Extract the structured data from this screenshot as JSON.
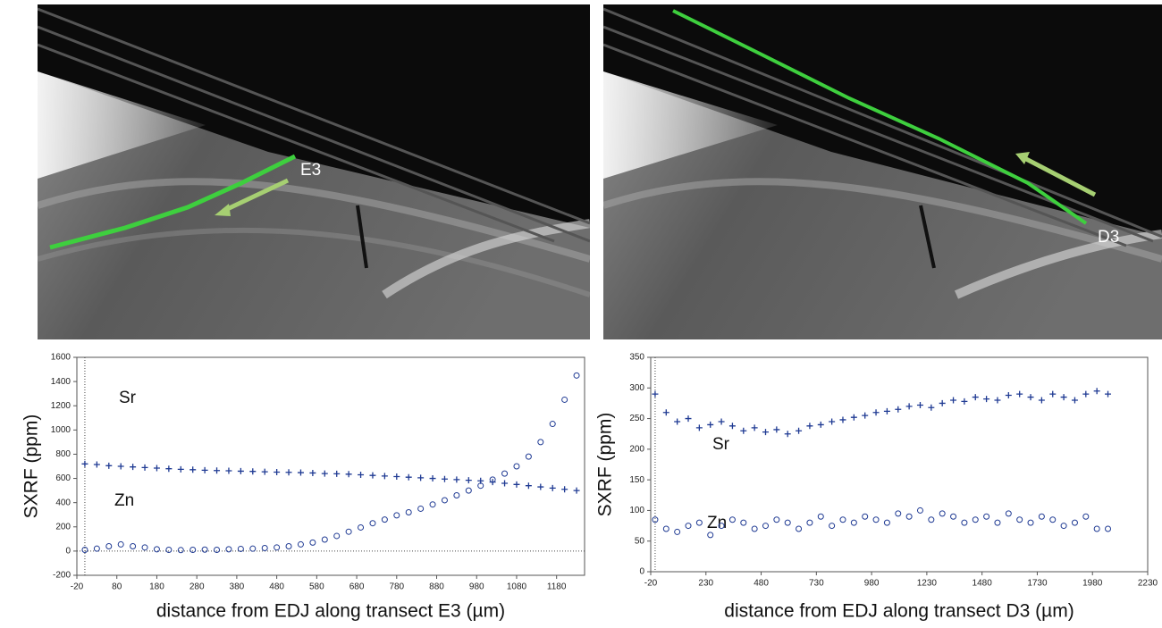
{
  "images": [
    {
      "label": "E3"
    },
    {
      "label": "D3"
    }
  ],
  "chart_data": [
    {
      "type": "scatter",
      "ylabel": "SXRF (ppm)",
      "xlabel": "distance from EDJ along transect E3 (µm)",
      "xlim": [
        -20,
        1250
      ],
      "xticks": [
        -20,
        80,
        180,
        280,
        380,
        480,
        580,
        680,
        780,
        880,
        980,
        1080,
        1180
      ],
      "ylim": [
        -200,
        1600
      ],
      "yticks": [
        -200,
        0,
        200,
        400,
        600,
        800,
        1000,
        1200,
        1400,
        1600
      ],
      "x": [
        0,
        30,
        60,
        90,
        120,
        150,
        180,
        210,
        240,
        270,
        300,
        330,
        360,
        390,
        420,
        450,
        480,
        510,
        540,
        570,
        600,
        630,
        660,
        690,
        720,
        750,
        780,
        810,
        840,
        870,
        900,
        930,
        960,
        990,
        1020,
        1050,
        1080,
        1110,
        1140,
        1170,
        1200,
        1230
      ],
      "series": [
        {
          "name": "Sr",
          "marker": "+",
          "color": "#1f3a93",
          "values": [
            720,
            715,
            705,
            700,
            695,
            690,
            685,
            680,
            675,
            672,
            668,
            665,
            663,
            660,
            658,
            655,
            652,
            650,
            648,
            645,
            640,
            638,
            635,
            630,
            625,
            620,
            615,
            610,
            605,
            600,
            595,
            590,
            585,
            580,
            570,
            560,
            550,
            540,
            530,
            520,
            510,
            500
          ]
        },
        {
          "name": "Zn",
          "marker": "o",
          "color": "#1f3a93",
          "values": [
            10,
            20,
            40,
            55,
            40,
            30,
            15,
            10,
            8,
            10,
            12,
            10,
            15,
            18,
            20,
            25,
            30,
            40,
            55,
            70,
            95,
            125,
            160,
            195,
            230,
            260,
            295,
            320,
            350,
            385,
            420,
            460,
            500,
            540,
            590,
            640,
            700,
            780,
            900,
            1050,
            1250,
            1450
          ]
        }
      ]
    },
    {
      "type": "scatter",
      "ylabel": "SXRF (ppm)",
      "xlabel": "distance from EDJ along transect D3 (µm)",
      "xlim": [
        -20,
        2230
      ],
      "xticks": [
        -20,
        230,
        480,
        730,
        980,
        1230,
        1480,
        1730,
        1980,
        2230
      ],
      "ylim": [
        0,
        350
      ],
      "yticks": [
        0,
        50,
        100,
        150,
        200,
        250,
        300,
        350
      ],
      "x": [
        0,
        50,
        100,
        150,
        200,
        250,
        300,
        350,
        400,
        450,
        500,
        550,
        600,
        650,
        700,
        750,
        800,
        850,
        900,
        950,
        1000,
        1050,
        1100,
        1150,
        1200,
        1250,
        1300,
        1350,
        1400,
        1450,
        1500,
        1550,
        1600,
        1650,
        1700,
        1750,
        1800,
        1850,
        1900,
        1950,
        2000,
        2050
      ],
      "series": [
        {
          "name": "Sr",
          "marker": "+",
          "color": "#1f3a93",
          "values": [
            290,
            260,
            245,
            250,
            235,
            240,
            245,
            238,
            230,
            235,
            228,
            232,
            225,
            230,
            238,
            240,
            245,
            248,
            252,
            255,
            260,
            262,
            265,
            270,
            272,
            268,
            275,
            280,
            278,
            285,
            282,
            280,
            288,
            290,
            285,
            280,
            290,
            285,
            280,
            290,
            295,
            290
          ]
        },
        {
          "name": "Zn",
          "marker": "o",
          "color": "#1f3a93",
          "values": [
            85,
            70,
            65,
            75,
            80,
            60,
            75,
            85,
            80,
            70,
            75,
            85,
            80,
            70,
            80,
            90,
            75,
            85,
            80,
            90,
            85,
            80,
            95,
            90,
            100,
            85,
            95,
            90,
            80,
            85,
            90,
            80,
            95,
            85,
            80,
            90,
            85,
            75,
            80,
            90,
            70,
            70
          ]
        }
      ]
    }
  ]
}
